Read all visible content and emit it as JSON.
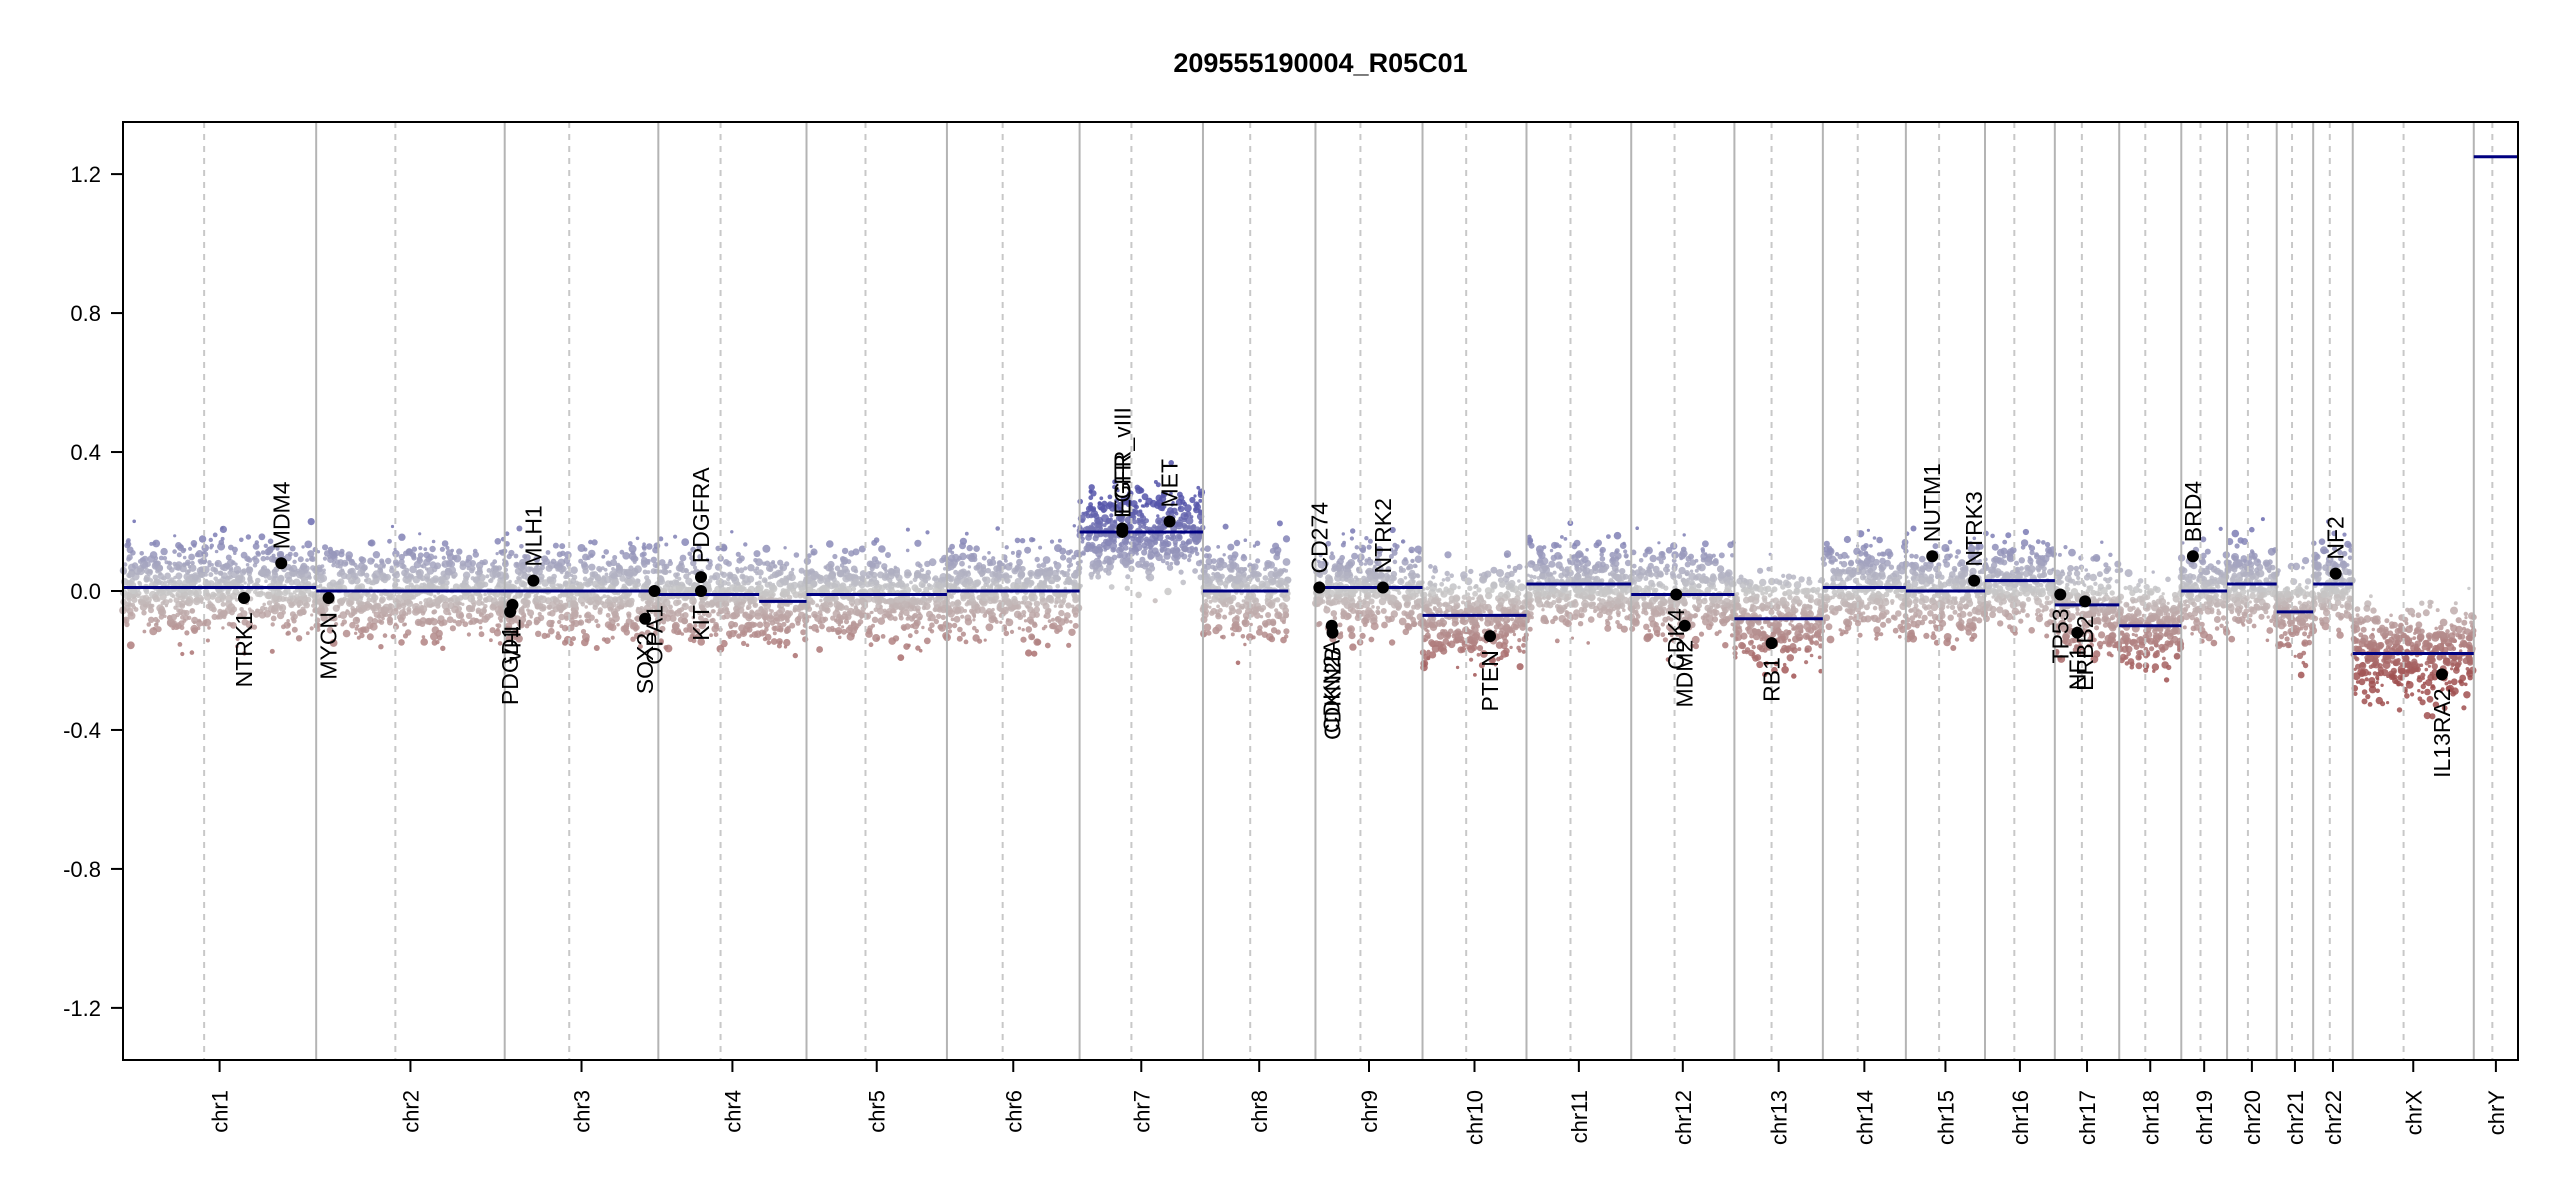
{
  "chart_data": {
    "type": "scatter",
    "title": "209555190004_R05C01",
    "xlabel": "",
    "ylabel": "",
    "ylim": [
      -1.35,
      1.35
    ],
    "yticks": [
      -1.2,
      -0.8,
      -0.4,
      0.0,
      0.4,
      0.8,
      1.2
    ],
    "ytick_labels": [
      "-1.2",
      "-0.8",
      "-0.4",
      "0.0",
      "0.4",
      "0.8",
      "1.2"
    ],
    "grid": false,
    "legend": "none",
    "colors": {
      "gain": "#5555aa",
      "loss": "#a05050",
      "neutral": "#c8c8c8",
      "segment": "#000080",
      "chrom_boundary": "#b4b4b4",
      "centromere": "#c8c8c8",
      "gene_point": "#000000"
    },
    "chromosomes": [
      {
        "name": "chr1",
        "label": "chr1",
        "length": 249
      },
      {
        "name": "chr2",
        "label": "chr2",
        "length": 243
      },
      {
        "name": "chr3",
        "label": "chr3",
        "length": 198
      },
      {
        "name": "chr4",
        "label": "chr4",
        "length": 191
      },
      {
        "name": "chr5",
        "label": "chr5",
        "length": 181
      },
      {
        "name": "chr6",
        "label": "chr6",
        "length": 171
      },
      {
        "name": "chr7",
        "label": "chr7",
        "length": 159
      },
      {
        "name": "chr8",
        "label": "chr8",
        "length": 145
      },
      {
        "name": "chr9",
        "label": "chr9",
        "length": 138
      },
      {
        "name": "chr10",
        "label": "chr10",
        "length": 134
      },
      {
        "name": "chr11",
        "label": "chr11",
        "length": 135
      },
      {
        "name": "chr12",
        "label": "chr12",
        "length": 133
      },
      {
        "name": "chr13",
        "label": "chr13",
        "length": 114
      },
      {
        "name": "chr14",
        "label": "chr14",
        "length": 107
      },
      {
        "name": "chr15",
        "label": "chr15",
        "length": 102
      },
      {
        "name": "chr16",
        "label": "chr16",
        "length": 90
      },
      {
        "name": "chr17",
        "label": "chr17",
        "length": 83
      },
      {
        "name": "chr18",
        "label": "chr18",
        "length": 80
      },
      {
        "name": "chr19",
        "label": "chr19",
        "length": 59
      },
      {
        "name": "chr20",
        "label": "chr20",
        "length": 64
      },
      {
        "name": "chr21",
        "label": "chr21",
        "length": 47
      },
      {
        "name": "chr22",
        "label": "chr22",
        "length": 51
      },
      {
        "name": "chrX",
        "label": "chrX",
        "length": 156
      },
      {
        "name": "chrY",
        "label": "chrY",
        "length": 57
      }
    ],
    "segments": [
      {
        "chr": "chr1",
        "start": 0,
        "end": 249,
        "value": 0.01
      },
      {
        "chr": "chr2",
        "start": 0,
        "end": 243,
        "value": 0.0
      },
      {
        "chr": "chr3",
        "start": 0,
        "end": 198,
        "value": 0.0
      },
      {
        "chr": "chr4",
        "start": 0,
        "end": 130,
        "value": -0.01
      },
      {
        "chr": "chr4",
        "start": 130,
        "end": 191,
        "value": -0.03
      },
      {
        "chr": "chr5",
        "start": 0,
        "end": 181,
        "value": -0.01
      },
      {
        "chr": "chr6",
        "start": 0,
        "end": 171,
        "value": 0.0
      },
      {
        "chr": "chr7",
        "start": 0,
        "end": 159,
        "value": 0.17
      },
      {
        "chr": "chr8",
        "start": 0,
        "end": 110,
        "value": 0.0
      },
      {
        "chr": "chr9",
        "start": 0,
        "end": 138,
        "value": 0.01
      },
      {
        "chr": "chr10",
        "start": 0,
        "end": 134,
        "value": -0.07
      },
      {
        "chr": "chr11",
        "start": 0,
        "end": 135,
        "value": 0.02
      },
      {
        "chr": "chr12",
        "start": 0,
        "end": 133,
        "value": -0.01
      },
      {
        "chr": "chr13",
        "start": 0,
        "end": 114,
        "value": -0.08
      },
      {
        "chr": "chr14",
        "start": 0,
        "end": 107,
        "value": 0.01
      },
      {
        "chr": "chr15",
        "start": 0,
        "end": 102,
        "value": 0.0
      },
      {
        "chr": "chr16",
        "start": 0,
        "end": 90,
        "value": 0.03
      },
      {
        "chr": "chr17",
        "start": 0,
        "end": 83,
        "value": -0.04
      },
      {
        "chr": "chr18",
        "start": 0,
        "end": 80,
        "value": -0.1
      },
      {
        "chr": "chr19",
        "start": 0,
        "end": 59,
        "value": 0.0
      },
      {
        "chr": "chr20",
        "start": 0,
        "end": 64,
        "value": 0.02
      },
      {
        "chr": "chr21",
        "start": 0,
        "end": 47,
        "value": -0.06
      },
      {
        "chr": "chr22",
        "start": 0,
        "end": 51,
        "value": 0.02
      },
      {
        "chr": "chrX",
        "start": 0,
        "end": 156,
        "value": -0.18
      },
      {
        "chr": "chrY",
        "start": 0,
        "end": 57,
        "value": 1.25
      }
    ],
    "genes": [
      {
        "name": "NTRK1",
        "chr": "chr1",
        "pos": 156,
        "value": -0.02,
        "side": "below"
      },
      {
        "name": "MDM4",
        "chr": "chr1",
        "pos": 204,
        "value": 0.08,
        "side": "above"
      },
      {
        "name": "MYCN",
        "chr": "chr2",
        "pos": 16,
        "value": -0.02,
        "side": "below"
      },
      {
        "name": "PDGD1",
        "chr": "chr3",
        "pos": 7,
        "value": -0.06,
        "side": "below"
      },
      {
        "name": "VHL",
        "chr": "chr3",
        "pos": 10,
        "value": -0.04,
        "side": "below"
      },
      {
        "name": "MLH1",
        "chr": "chr3",
        "pos": 37,
        "value": 0.03,
        "side": "above"
      },
      {
        "name": "SOX2",
        "chr": "chr3",
        "pos": 181,
        "value": -0.08,
        "side": "below"
      },
      {
        "name": "OPA1",
        "chr": "chr3",
        "pos": 193,
        "value": 0.0,
        "side": "below"
      },
      {
        "name": "KIT",
        "chr": "chr4",
        "pos": 55,
        "value": 0.0,
        "side": "below"
      },
      {
        "name": "PDGFRA",
        "chr": "chr4",
        "pos": 55,
        "value": 0.04,
        "side": "above"
      },
      {
        "name": "EGFR",
        "chr": "chr7",
        "pos": 55,
        "value": 0.17,
        "side": "above"
      },
      {
        "name": "EGFR_vIII",
        "chr": "chr7",
        "pos": 55,
        "value": 0.18,
        "side": "above"
      },
      {
        "name": "MET",
        "chr": "chr7",
        "pos": 116,
        "value": 0.2,
        "side": "above"
      },
      {
        "name": "CD274",
        "chr": "chr9",
        "pos": 5,
        "value": 0.01,
        "side": "above"
      },
      {
        "name": "CDKN2A",
        "chr": "chr9",
        "pos": 21,
        "value": -0.1,
        "side": "below"
      },
      {
        "name": "CDKN2B",
        "chr": "chr9",
        "pos": 22,
        "value": -0.12,
        "side": "below"
      },
      {
        "name": "NTRK2",
        "chr": "chr9",
        "pos": 87,
        "value": 0.01,
        "side": "above"
      },
      {
        "name": "PTEN",
        "chr": "chr10",
        "pos": 87,
        "value": -0.13,
        "side": "below"
      },
      {
        "name": "CDK4",
        "chr": "chr12",
        "pos": 58,
        "value": -0.01,
        "side": "below"
      },
      {
        "name": "MDM2",
        "chr": "chr12",
        "pos": 69,
        "value": -0.1,
        "side": "below"
      },
      {
        "name": "RB1",
        "chr": "chr13",
        "pos": 48,
        "value": -0.15,
        "side": "below"
      },
      {
        "name": "NUTM1",
        "chr": "chr15",
        "pos": 34,
        "value": 0.1,
        "side": "above"
      },
      {
        "name": "NTRK3",
        "chr": "chr15",
        "pos": 88,
        "value": 0.03,
        "side": "above"
      },
      {
        "name": "TP53",
        "chr": "chr17",
        "pos": 7,
        "value": -0.01,
        "side": "below"
      },
      {
        "name": "NF1",
        "chr": "chr17",
        "pos": 29,
        "value": -0.12,
        "side": "below"
      },
      {
        "name": "ERBB2",
        "chr": "chr17",
        "pos": 39,
        "value": -0.03,
        "side": "below"
      },
      {
        "name": "BRD4",
        "chr": "chr19",
        "pos": 15,
        "value": 0.1,
        "side": "above"
      },
      {
        "name": "NF2",
        "chr": "chr22",
        "pos": 29,
        "value": 0.05,
        "side": "above"
      },
      {
        "name": "IL13RA2",
        "chr": "chrX",
        "pos": 115,
        "value": -0.24,
        "side": "below"
      }
    ]
  }
}
